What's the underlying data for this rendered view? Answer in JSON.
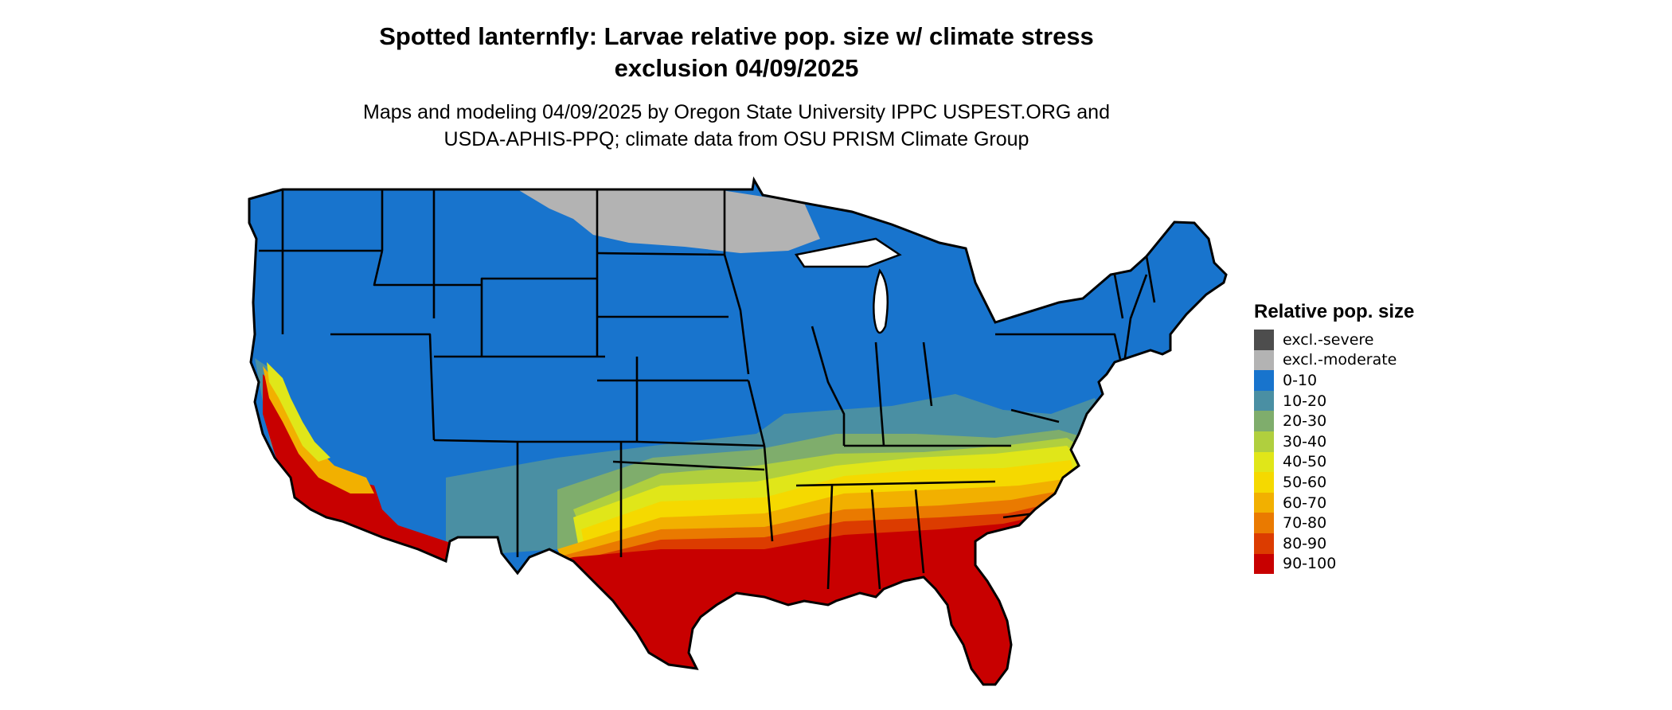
{
  "title": {
    "line1": "Spotted lanternfly: Larvae relative pop. size w/ climate stress",
    "line2": "exclusion 04/09/2025"
  },
  "subtitle": {
    "line1": "Maps and modeling 04/09/2025 by Oregon State University IPPC USPEST.ORG and",
    "line2": "USDA-APHIS-PPQ; climate data from OSU PRISM Climate Group"
  },
  "legend": {
    "title": "Relative pop. size",
    "items": [
      {
        "label": "excl.-severe",
        "color": "#4d4d4d"
      },
      {
        "label": "excl.-moderate",
        "color": "#b3b3b3"
      },
      {
        "label": "0-10",
        "color": "#1874cd"
      },
      {
        "label": "10-20",
        "color": "#4a8fa3"
      },
      {
        "label": "20-30",
        "color": "#7fad6c"
      },
      {
        "label": "30-40",
        "color": "#b0cf3e"
      },
      {
        "label": "40-50",
        "color": "#e0e619"
      },
      {
        "label": "50-60",
        "color": "#f5d900"
      },
      {
        "label": "60-70",
        "color": "#f2b000"
      },
      {
        "label": "70-80",
        "color": "#ea7a00"
      },
      {
        "label": "80-90",
        "color": "#dc3c00"
      },
      {
        "label": "90-100",
        "color": "#c80000"
      }
    ]
  },
  "map": {
    "region": "Contiguous United States",
    "state_boundary_color": "#000000"
  }
}
